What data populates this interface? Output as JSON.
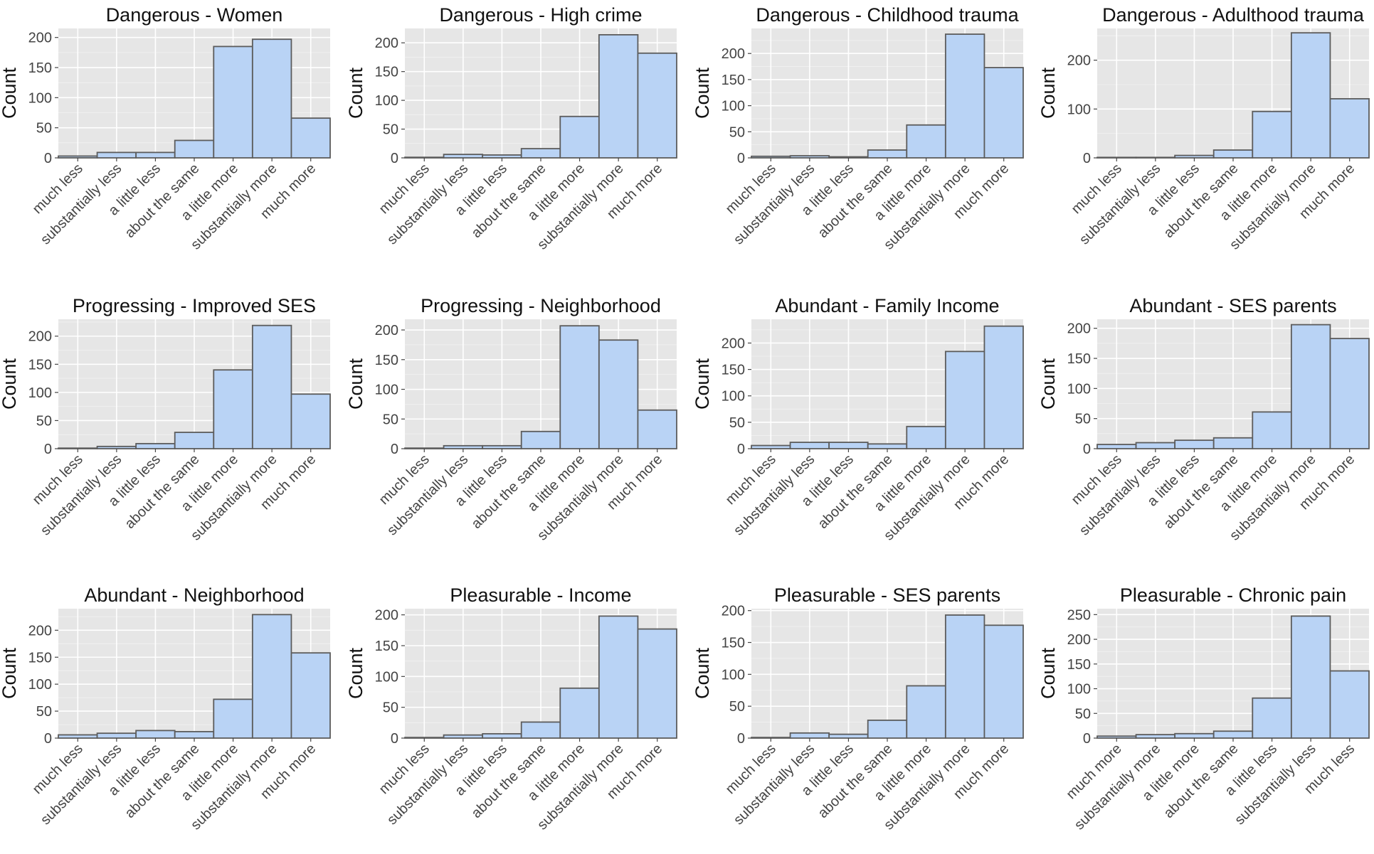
{
  "chart_data": [
    {
      "type": "bar",
      "title": "Dangerous - Women",
      "ylabel": "Count",
      "ylim": [
        0,
        215
      ],
      "yticks": [
        0,
        50,
        100,
        150,
        200
      ],
      "categories": [
        "much less",
        "substantially less",
        "a little less",
        "about the same",
        "a little more",
        "substantially more",
        "much more"
      ],
      "values": [
        3,
        9,
        9,
        29,
        185,
        197,
        66
      ]
    },
    {
      "type": "bar",
      "title": "Dangerous - High crime",
      "ylabel": "Count",
      "ylim": [
        0,
        225
      ],
      "yticks": [
        0,
        50,
        100,
        150,
        200
      ],
      "categories": [
        "much less",
        "substantially less",
        "a little less",
        "about the same",
        "a little more",
        "substantially more",
        "much more"
      ],
      "values": [
        1,
        6,
        5,
        16,
        72,
        214,
        182
      ]
    },
    {
      "type": "bar",
      "title": "Dangerous - Childhood trauma",
      "ylabel": "Count",
      "ylim": [
        0,
        248
      ],
      "yticks": [
        0,
        50,
        100,
        150,
        200
      ],
      "categories": [
        "much less",
        "substantially less",
        "a little less",
        "about the same",
        "a little more",
        "substantially more",
        "much more"
      ],
      "values": [
        3,
        4,
        2,
        15,
        63,
        237,
        173
      ]
    },
    {
      "type": "bar",
      "title": "Dangerous - Adulthood trauma",
      "ylabel": "Count",
      "ylim": [
        0,
        265
      ],
      "yticks": [
        0,
        100,
        200
      ],
      "categories": [
        "much less",
        "substantially less",
        "a little less",
        "about the same",
        "a little more",
        "substantially more",
        "much more"
      ],
      "values": [
        1,
        1,
        5,
        16,
        95,
        256,
        121
      ]
    },
    {
      "type": "bar",
      "title": "Progressing - Improved SES",
      "ylabel": "Count",
      "ylim": [
        0,
        230
      ],
      "yticks": [
        0,
        50,
        100,
        150,
        200
      ],
      "categories": [
        "much less",
        "substantially less",
        "a little less",
        "about the same",
        "a little more",
        "substantially more",
        "much more"
      ],
      "values": [
        1,
        4,
        9,
        29,
        140,
        219,
        97
      ]
    },
    {
      "type": "bar",
      "title": "Progressing - Neighborhood",
      "ylabel": "Count",
      "ylim": [
        0,
        218
      ],
      "yticks": [
        0,
        50,
        100,
        150,
        200
      ],
      "categories": [
        "much less",
        "substantially less",
        "a little less",
        "about the same",
        "a little more",
        "substantially more",
        "much more"
      ],
      "values": [
        1,
        5,
        5,
        29,
        207,
        183,
        65
      ]
    },
    {
      "type": "bar",
      "title": "Abundant - Family Income",
      "ylabel": "Count",
      "ylim": [
        0,
        245
      ],
      "yticks": [
        0,
        50,
        100,
        150,
        200
      ],
      "categories": [
        "much less",
        "substantially less",
        "a little less",
        "about the same",
        "a little more",
        "substantially more",
        "much more"
      ],
      "values": [
        6,
        12,
        12,
        9,
        42,
        184,
        232
      ]
    },
    {
      "type": "bar",
      "title": "Abundant - SES parents",
      "ylabel": "Count",
      "ylim": [
        0,
        215
      ],
      "yticks": [
        0,
        50,
        100,
        150,
        200
      ],
      "categories": [
        "much less",
        "substantially less",
        "a little less",
        "about the same",
        "a little more",
        "substantially more",
        "much more"
      ],
      "values": [
        7,
        10,
        14,
        18,
        61,
        206,
        183
      ]
    },
    {
      "type": "bar",
      "title": "Abundant - Neighborhood",
      "ylabel": "Count",
      "ylim": [
        0,
        240
      ],
      "yticks": [
        0,
        50,
        100,
        150,
        200
      ],
      "categories": [
        "much less",
        "substantially less",
        "a little less",
        "about the same",
        "a little more",
        "substantially more",
        "much more"
      ],
      "values": [
        6,
        9,
        14,
        12,
        72,
        229,
        158
      ]
    },
    {
      "type": "bar",
      "title": "Pleasurable - Income",
      "ylabel": "Count",
      "ylim": [
        0,
        210
      ],
      "yticks": [
        0,
        50,
        100,
        150,
        200
      ],
      "categories": [
        "much less",
        "substantially less",
        "a little less",
        "about the same",
        "a little more",
        "substantially more",
        "much more"
      ],
      "values": [
        1,
        5,
        7,
        26,
        81,
        198,
        177
      ]
    },
    {
      "type": "bar",
      "title": "Pleasurable - SES parents",
      "ylabel": "Count",
      "ylim": [
        0,
        203
      ],
      "yticks": [
        0,
        50,
        100,
        150,
        200
      ],
      "categories": [
        "much less",
        "substantially less",
        "a little less",
        "about the same",
        "a little more",
        "substantially more",
        "much more"
      ],
      "values": [
        1,
        8,
        6,
        28,
        82,
        193,
        177
      ]
    },
    {
      "type": "bar",
      "title": "Pleasurable - Chronic pain",
      "ylabel": "Count",
      "ylim": [
        0,
        262
      ],
      "yticks": [
        0,
        50,
        100,
        150,
        200,
        250
      ],
      "categories": [
        "much more",
        "substantially more",
        "a little more",
        "about the same",
        "a little less",
        "substantially less",
        "much less"
      ],
      "values": [
        4,
        7,
        9,
        14,
        81,
        247,
        136
      ]
    }
  ]
}
